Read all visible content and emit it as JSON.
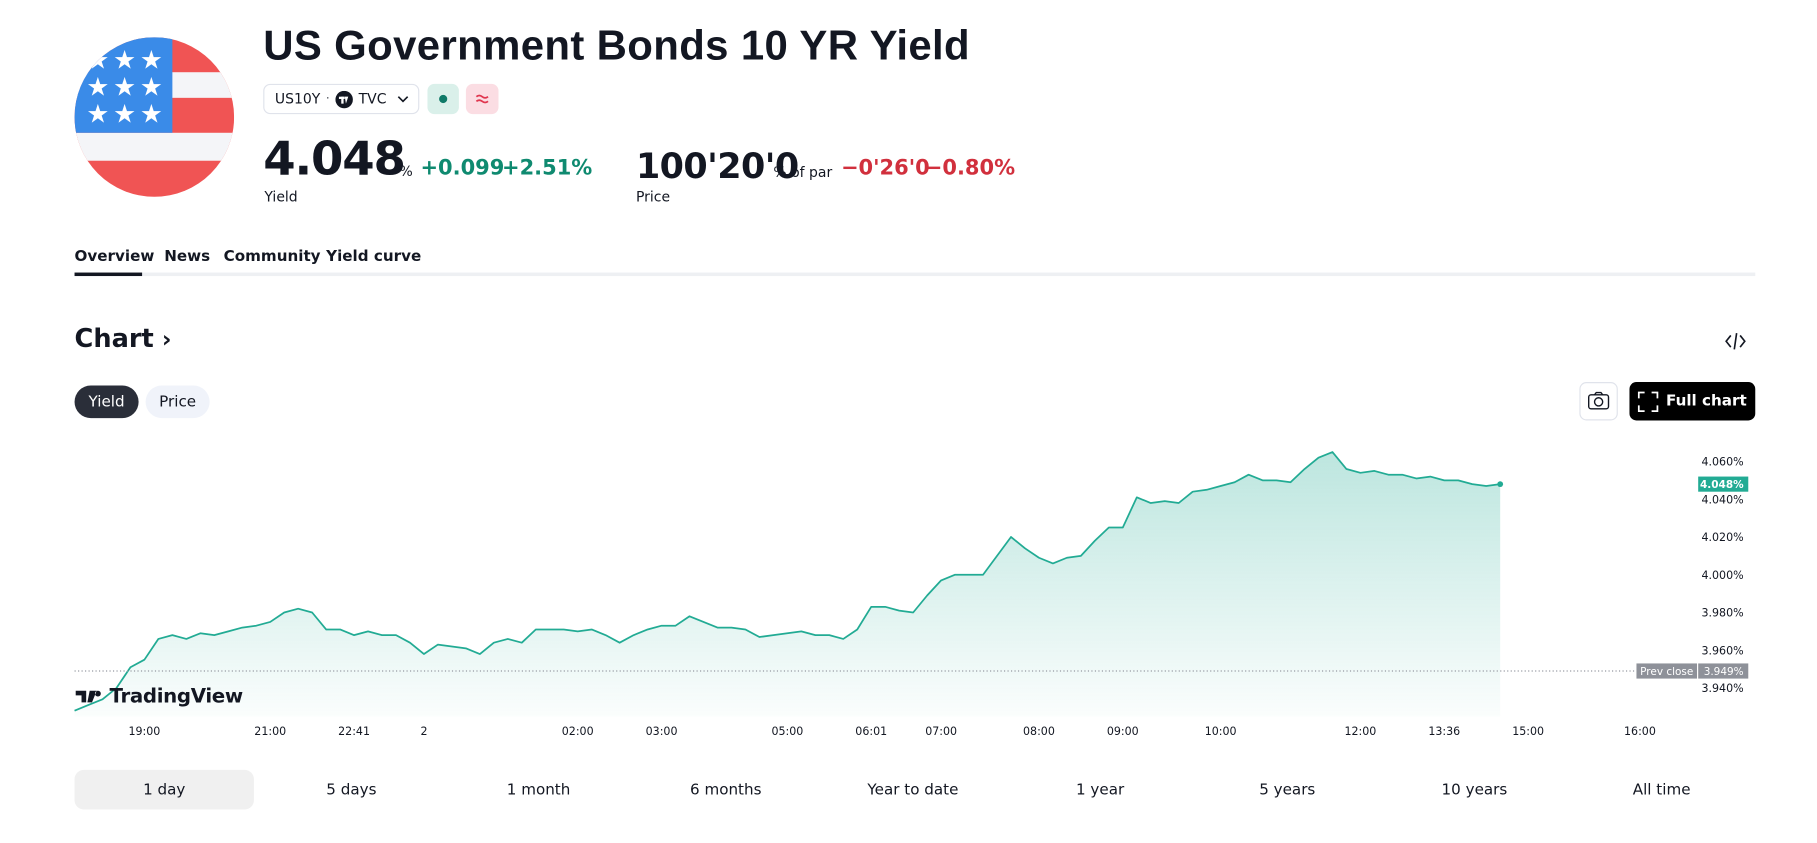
{
  "header": {
    "title": "US Government Bonds 10 YR Yield",
    "symbol": "US10Y",
    "exchange": "TVC",
    "yield": {
      "value": "4.048",
      "unit": "%",
      "change": "+0.099",
      "change_percent": "+2.51%",
      "label": "Yield"
    },
    "price": {
      "value": "100'20'0",
      "unit": "% of par",
      "change": "−0'26'0",
      "change_percent": "−0.80%",
      "label": "Price"
    }
  },
  "tabs": [
    "Overview",
    "News",
    "Community",
    "Yield curve"
  ],
  "chart_section": {
    "heading": "Chart",
    "toggles": [
      "Yield",
      "Price"
    ],
    "full_chart": "Full chart",
    "watermark": "TradingView"
  },
  "chart_data": {
    "type": "line",
    "categories": [
      null,
      null,
      null,
      null,
      null,
      "19:00",
      null,
      null,
      null,
      null,
      null,
      null,
      null,
      null,
      "21:00",
      null,
      null,
      null,
      null,
      null,
      "22:41",
      null,
      null,
      null,
      null,
      "2",
      null,
      null,
      null,
      null,
      null,
      null,
      null,
      null,
      null,
      null,
      "02:00",
      null,
      null,
      null,
      null,
      null,
      "03:00",
      null,
      null,
      null,
      null,
      null,
      null,
      null,
      null,
      "05:00",
      null,
      null,
      null,
      null,
      null,
      "06:01",
      null,
      null,
      null,
      null,
      "07:00",
      null,
      null,
      null,
      null,
      null,
      null,
      "08:00",
      null,
      null,
      null,
      null,
      null,
      "09:00",
      null,
      null,
      null,
      null,
      null,
      null,
      "10:00",
      null,
      null,
      null,
      null,
      null,
      null,
      null,
      null,
      null,
      "12:00",
      null,
      null,
      null,
      null,
      null,
      "13:36",
      null,
      null,
      null,
      null,
      null,
      "15:00",
      null,
      null,
      null,
      null,
      null,
      null,
      null,
      "16:00",
      null,
      null,
      null
    ],
    "series": [
      {
        "name": "US10Y",
        "color": "#22ab94",
        "values": [
          3.928,
          3.931,
          3.934,
          3.94,
          3.951,
          3.955,
          3.966,
          3.968,
          3.966,
          3.969,
          3.968,
          3.97,
          3.972,
          3.973,
          3.975,
          3.98,
          3.982,
          3.98,
          3.971,
          3.971,
          3.968,
          3.97,
          3.968,
          3.968,
          3.964,
          3.958,
          3.963,
          3.962,
          3.961,
          3.958,
          3.964,
          3.966,
          3.964,
          3.971,
          3.971,
          3.971,
          3.97,
          3.971,
          3.968,
          3.964,
          3.968,
          3.971,
          3.973,
          3.973,
          3.978,
          3.975,
          3.972,
          3.972,
          3.971,
          3.967,
          3.968,
          3.969,
          3.97,
          3.968,
          3.968,
          3.966,
          3.971,
          3.983,
          3.983,
          3.981,
          3.98,
          3.989,
          3.997,
          4.0,
          4.0,
          4.0,
          4.01,
          4.02,
          4.014,
          4.009,
          4.006,
          4.009,
          4.01,
          4.018,
          4.025,
          4.025,
          4.041,
          4.038,
          4.039,
          4.038,
          4.044,
          4.045,
          4.047,
          4.049,
          4.053,
          4.05,
          4.05,
          4.049,
          4.056,
          4.062,
          4.065,
          4.056,
          4.054,
          4.055,
          4.053,
          4.053,
          4.051,
          4.052,
          4.05,
          4.05,
          4.048,
          4.047,
          4.048,
          null,
          null,
          null,
          null,
          null,
          null,
          null,
          null,
          null,
          null,
          null,
          null,
          null
        ]
      }
    ],
    "ylim": [
      3.925,
      4.07
    ],
    "yticks": [
      {
        "value": 3.94,
        "label": "3.940%"
      },
      {
        "value": 3.96,
        "label": "3.960%"
      },
      {
        "value": 3.98,
        "label": "3.980%"
      },
      {
        "value": 4.0,
        "label": "4.000%"
      },
      {
        "value": 4.02,
        "label": "4.020%"
      },
      {
        "value": 4.04,
        "label": "4.040%"
      },
      {
        "value": 4.06,
        "label": "4.060%"
      }
    ],
    "prev_close": {
      "name": "Prev close",
      "value": 3.949,
      "label": "3.949%"
    },
    "last": {
      "value": 4.048,
      "label": "4.048%"
    }
  },
  "ranges": [
    "1 day",
    "5 days",
    "1 month",
    "6 months",
    "Year to date",
    "1 year",
    "5 years",
    "10 years",
    "All time"
  ]
}
